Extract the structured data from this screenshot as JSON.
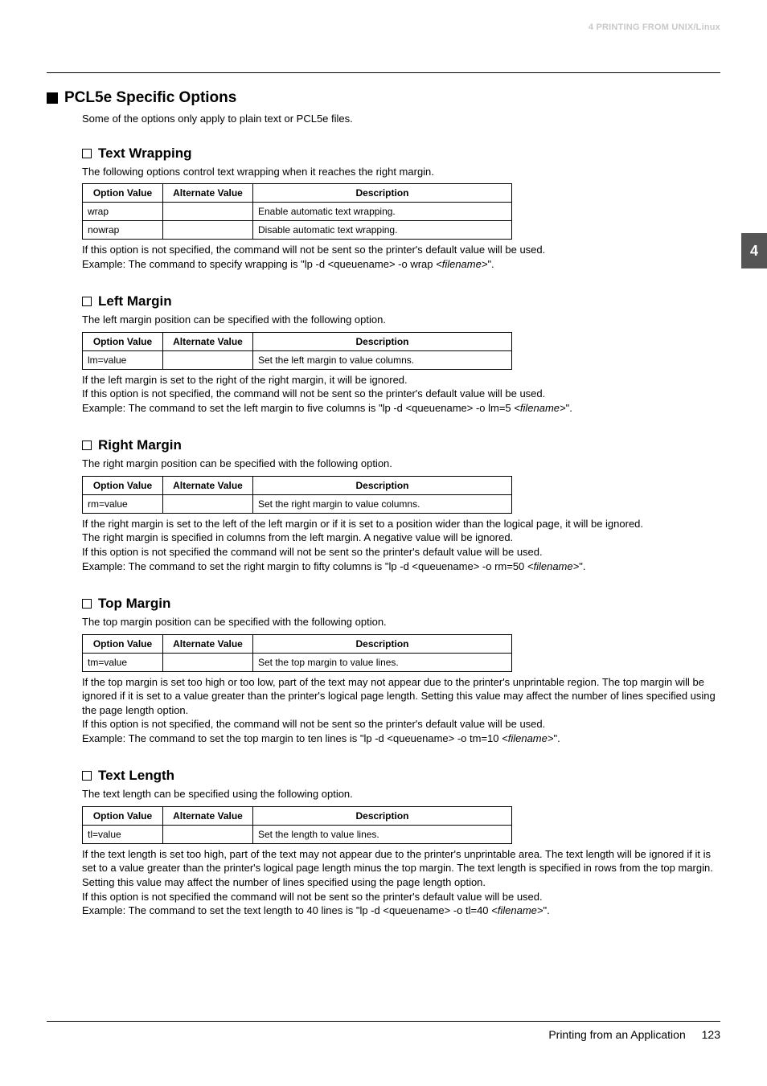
{
  "header": {
    "running_head": "4 PRINTING FROM UNIX/Linux"
  },
  "side_tab": "4",
  "h1": "PCL5e Specific Options",
  "intro": "Some of the options only apply to plain text or PCL5e files.",
  "table_headers": {
    "ov": "Option Value",
    "av": "Alternate Value",
    "desc": "Description"
  },
  "sections": {
    "text_wrapping": {
      "title": "Text Wrapping",
      "lead": "The following options control text wrapping when it reaches the right margin.",
      "rows": [
        {
          "ov": "wrap",
          "av": "",
          "desc": "Enable automatic text wrapping."
        },
        {
          "ov": "nowrap",
          "av": "",
          "desc": "Disable automatic text wrapping."
        }
      ],
      "after": "If this option is not specified, the command will not be sent so the printer's default value will be used.\nExample: The command to specify wrapping is \"lp -d <queuename> -o wrap <em><filename></em>\"."
    },
    "left_margin": {
      "title": "Left Margin",
      "lead": "The left margin position can be specified with the following option.",
      "rows": [
        {
          "ov": "lm=value",
          "av": "",
          "desc": "Set the left margin to value columns."
        }
      ],
      "after": "If the left margin is set to the right of the right margin, it will be ignored.\nIf this option is not specified, the command will not be sent so the printer's default value will be used.\nExample: The command to set the left margin to five columns is \"lp -d <queuename> -o lm=5 <em><filename></em>\"."
    },
    "right_margin": {
      "title": "Right Margin",
      "lead": "The right margin position can be specified with the following option.",
      "rows": [
        {
          "ov": "rm=value",
          "av": "",
          "desc": "Set the right margin to value columns."
        }
      ],
      "after": "If the right margin is set to the left of the left margin or if it is set to a position wider than the logical page, it will be ignored.\nThe right margin is specified in columns from the left margin. A negative value will be ignored.\nIf this option is not specified the command will not be sent so the printer's default value will be used.\nExample: The command to set the right margin to fifty columns is \"lp -d <queuename> -o rm=50 <em><filename></em>\"."
    },
    "top_margin": {
      "title": "Top Margin",
      "lead": "The top margin position can be specified with the following option.",
      "rows": [
        {
          "ov": "tm=value",
          "av": "",
          "desc": "Set the top margin to value lines."
        }
      ],
      "after": "If the top margin is set too high or too low, part of the text may not appear due to the printer's unprintable region. The top margin will be ignored if it is set to a value greater than the printer's logical page length. Setting this value may affect the number of lines specified using the page length option.\nIf this option is not specified, the command will not be sent so the printer's default value will be used.\nExample: The command to set the top margin to ten lines is \"lp -d <queuename> -o tm=10 <em><filename></em>\"."
    },
    "text_length": {
      "title": "Text Length",
      "lead": "The text length can be specified using the following option.",
      "rows": [
        {
          "ov": "tl=value",
          "av": "",
          "desc": "Set the length to value lines."
        }
      ],
      "after": "If the text length is set too high, part of the text may not appear due to the printer's unprintable area. The text length will be ignored if it is set to a value greater than the printer's logical page length minus the top margin. The text length is specified in rows from the top margin. Setting this value may affect the number of lines specified using the page length option.\nIf this option is not specified the command will not be sent so the printer's default value will be used.\nExample: The command to set the text length to 40 lines is \"lp -d <queuename> -o tl=40 <em><filename></em>\"."
    }
  },
  "footer": {
    "text": "Printing from an Application",
    "page": "123"
  }
}
